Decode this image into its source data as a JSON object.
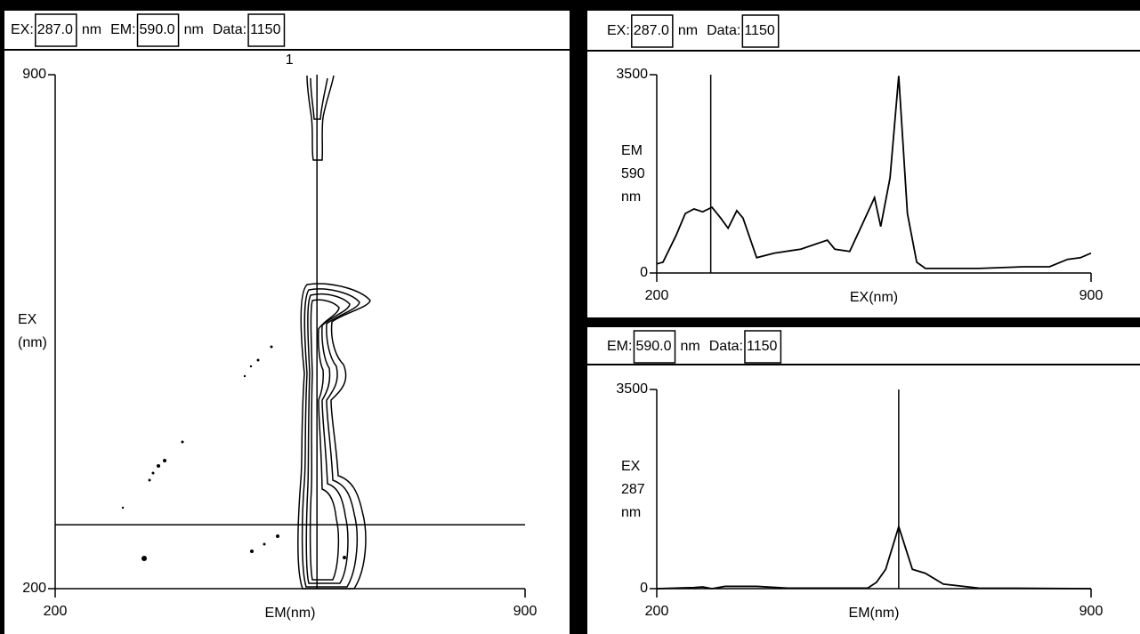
{
  "headers": [
    {
      "fields": [
        {
          "label": "EX:",
          "value": "287.0",
          "unit": "nm"
        },
        {
          "label": "EM:",
          "value": "590.0",
          "unit": "nm"
        },
        {
          "label": "Data:",
          "value": "1150"
        }
      ]
    },
    {
      "fields": [
        {
          "label": "EX:",
          "value": "287.0",
          "unit": "nm"
        },
        {
          "label": "Data:",
          "value": "1150"
        }
      ]
    },
    {
      "fields": [
        {
          "label": "EM:",
          "value": "590.0",
          "unit": "nm"
        },
        {
          "label": "Data:",
          "value": "1150"
        }
      ]
    }
  ],
  "chart_data": [
    {
      "type": "contour",
      "xlabel": "EM(nm)",
      "ylabel": [
        "EX",
        "(nm)"
      ],
      "annotation": "1",
      "xlim": [
        200,
        900
      ],
      "ylim": [
        200,
        900
      ],
      "xticks": [
        200,
        900
      ],
      "yticks": [
        200,
        900
      ],
      "cursor": {
        "x": 590,
        "y": 287
      },
      "color": "#000000"
    },
    {
      "type": "line",
      "xlabel": "EX(nm)",
      "ylabel": [
        "EM",
        "590",
        "nm"
      ],
      "xlim": [
        200,
        900
      ],
      "ylim": [
        0,
        3500
      ],
      "xticks": [
        200,
        900
      ],
      "yticks": [
        0,
        3500
      ],
      "cursor": {
        "x": 287
      },
      "color": "#000000",
      "x": [
        200,
        210,
        231,
        246,
        260,
        274,
        289,
        303,
        315,
        329,
        339,
        361,
        389,
        432,
        475,
        487,
        511,
        533,
        551,
        561,
        576,
        590,
        604,
        619,
        633,
        719,
        791,
        833,
        862,
        883,
        900
      ],
      "values": [
        160,
        190,
        660,
        1050,
        1130,
        1080,
        1160,
        970,
        790,
        1100,
        970,
        270,
        350,
        420,
        580,
        420,
        380,
        900,
        1330,
        820,
        1680,
        3480,
        1050,
        190,
        80,
        80,
        110,
        110,
        240,
        270,
        350
      ]
    },
    {
      "type": "line",
      "xlabel": "EM(nm)",
      "ylabel": [
        "EX",
        "287",
        "nm"
      ],
      "xlim": [
        200,
        900
      ],
      "ylim": [
        0,
        3500
      ],
      "xticks": [
        200,
        900
      ],
      "yticks": [
        0,
        3500
      ],
      "cursor": {
        "x": 590
      },
      "color": "#000000",
      "x": [
        200,
        260,
        274,
        289,
        310,
        361,
        411,
        540,
        554,
        569,
        590,
        612,
        633,
        662,
        719,
        900
      ],
      "values": [
        0,
        20,
        30,
        0,
        40,
        40,
        10,
        10,
        110,
        340,
        1090,
        340,
        270,
        80,
        10,
        0
      ]
    }
  ]
}
